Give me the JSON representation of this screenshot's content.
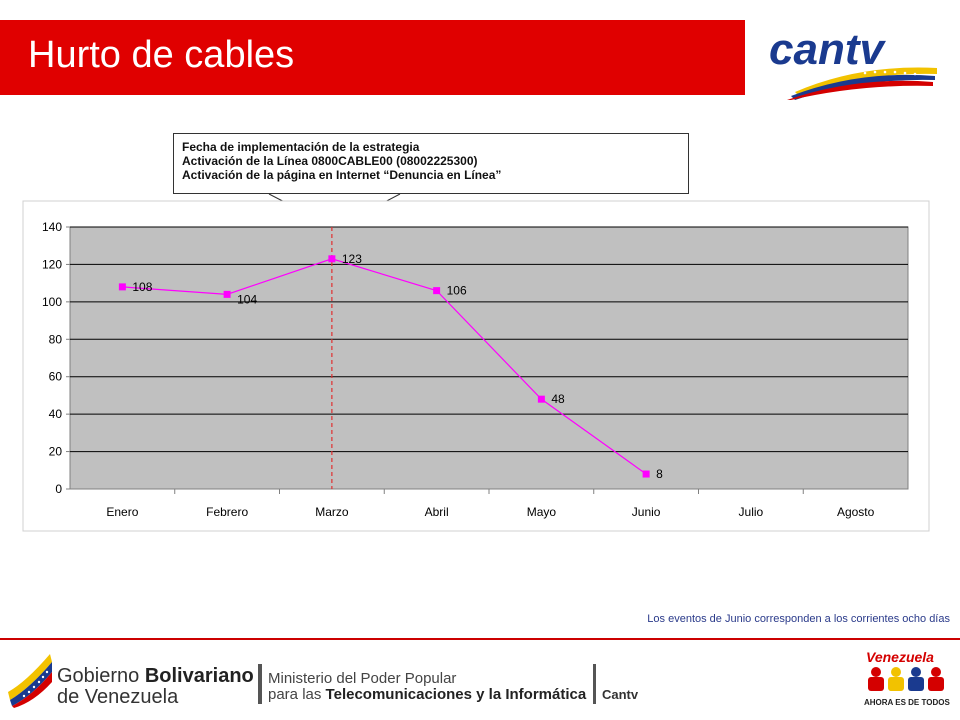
{
  "header": {
    "title": "Hurto de cables",
    "logo_text": "cantv",
    "accent_color": "#e00000"
  },
  "callout": {
    "lines": [
      "Fecha de implementación de la estrategia",
      "Activación de la Línea 0800CABLE00 (08002225300)",
      "Activación de la página en Internet “Denuncia en Línea”"
    ]
  },
  "chart_data": {
    "type": "line",
    "categories": [
      "Enero",
      "Febrero",
      "Marzo",
      "Abril",
      "Mayo",
      "Junio",
      "Julio",
      "Agosto"
    ],
    "series": [
      {
        "values": [
          108,
          104,
          123,
          106,
          48,
          8,
          null,
          null
        ],
        "color": "#ff00ff"
      }
    ],
    "ylim": [
      0,
      140
    ],
    "yticks": [
      0,
      20,
      40,
      60,
      80,
      100,
      120,
      140
    ],
    "grid": true,
    "plot_background": "#c0c0c0",
    "marker_line_category": "Marzo",
    "marker_line_color": "#e03030"
  },
  "footnote": "Los eventos de Junio corresponden a los corrientes ocho días",
  "footer": {
    "gov_line1_plain": "Gobierno ",
    "gov_line1_bold": "Bolivariano",
    "gov_line2": "de Venezuela",
    "ministry_line1": "Ministerio del Poder Popular",
    "ministry_line2_plain": "para las ",
    "ministry_line2_bold": "Telecomunicaciones y la Informática",
    "org": "Cantv",
    "country_logo_text": "Venezuela",
    "slogan": "AHORA ES DE TODOS"
  }
}
